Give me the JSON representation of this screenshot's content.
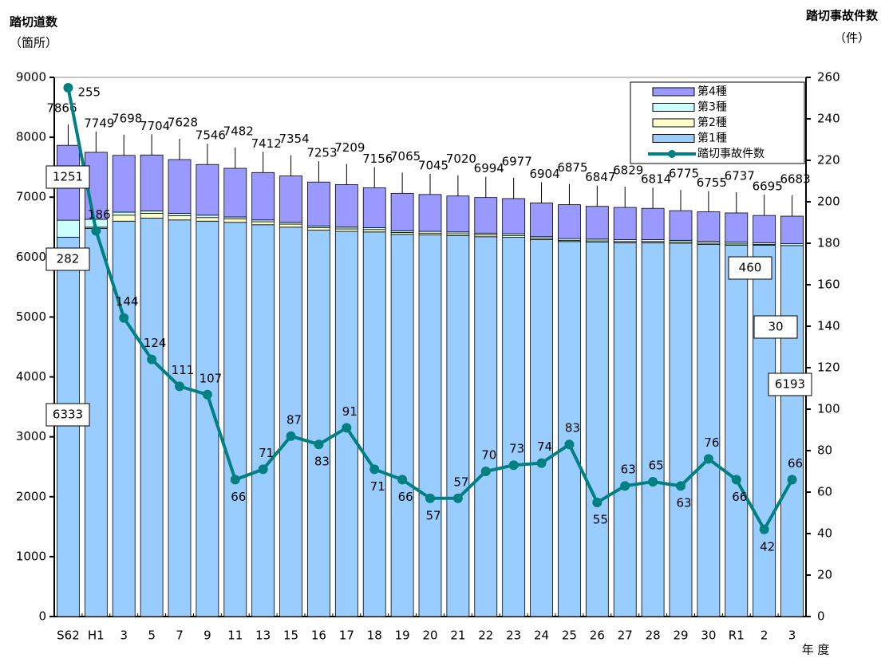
{
  "chart_data": {
    "type": "bar",
    "stacked": true,
    "y_title": "踏切道数",
    "y_unit": "（箇所）",
    "y2_title": "踏切事故件数",
    "y2_unit": "（件）",
    "x_title": "年 度",
    "categories": [
      "S62",
      "H1",
      "3",
      "5",
      "7",
      "9",
      "11",
      "13",
      "15",
      "16",
      "17",
      "18",
      "19",
      "20",
      "21",
      "22",
      "23",
      "24",
      "25",
      "26",
      "27",
      "28",
      "29",
      "30",
      "R1",
      "2",
      "3"
    ],
    "totals": [
      7866,
      7749,
      7698,
      7704,
      7628,
      7546,
      7482,
      7412,
      7354,
      7253,
      7209,
      7156,
      7065,
      7045,
      7020,
      6994,
      6977,
      6904,
      6875,
      6847,
      6829,
      6814,
      6775,
      6755,
      6737,
      6695,
      6683
    ],
    "series": [
      {
        "name": "第1種",
        "color": "#99ccff",
        "values": [
          6333,
          6480,
          6600,
          6650,
          6620,
          6600,
          6580,
          6540,
          6500,
          6450,
          6430,
          6420,
          6380,
          6370,
          6360,
          6340,
          6330,
          6290,
          6260,
          6250,
          6240,
          6240,
          6230,
          6210,
          6200,
          6200,
          6193
        ]
      },
      {
        "name": "第2種",
        "color": "#ffffcc",
        "values": [
          0,
          20,
          100,
          80,
          70,
          60,
          60,
          50,
          50,
          40,
          40,
          40,
          30,
          30,
          30,
          30,
          30,
          20,
          20,
          20,
          20,
          20,
          20,
          20,
          20,
          10,
          0
        ]
      },
      {
        "name": "第3種",
        "color": "#ccffff",
        "values": [
          282,
          130,
          50,
          40,
          40,
          40,
          30,
          30,
          30,
          30,
          30,
          30,
          30,
          30,
          30,
          30,
          30,
          30,
          30,
          30,
          30,
          30,
          30,
          30,
          30,
          30,
          30
        ]
      },
      {
        "name": "第4種",
        "color": "#9999ff",
        "values": [
          1251,
          1119,
          948,
          934,
          898,
          846,
          812,
          792,
          774,
          733,
          709,
          666,
          625,
          615,
          600,
          594,
          587,
          564,
          565,
          547,
          539,
          524,
          495,
          495,
          487,
          455,
          460
        ]
      },
      {
        "name": "踏切事故件数",
        "type": "line",
        "axis": "y2",
        "color": "#008080",
        "values": [
          255,
          186,
          144,
          124,
          111,
          107,
          66,
          71,
          87,
          83,
          91,
          71,
          66,
          57,
          57,
          70,
          73,
          74,
          83,
          55,
          63,
          65,
          63,
          76,
          66,
          42,
          66
        ]
      }
    ],
    "ylim": [
      0,
      9000
    ],
    "yticks": [
      0,
      1000,
      2000,
      3000,
      4000,
      5000,
      6000,
      7000,
      8000,
      9000
    ],
    "y2lim": [
      0,
      260
    ],
    "y2ticks": [
      0,
      20,
      40,
      60,
      80,
      100,
      120,
      140,
      160,
      180,
      200,
      220,
      240,
      260
    ],
    "legend": "upper right"
  }
}
